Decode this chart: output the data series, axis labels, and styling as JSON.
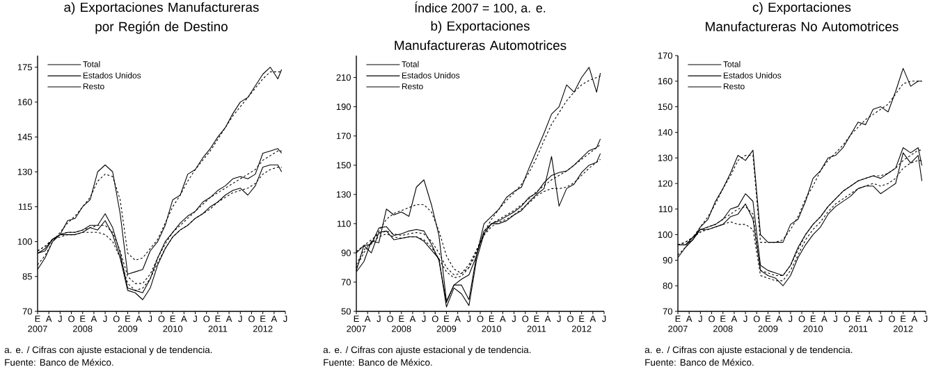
{
  "chart_data": [
    {
      "type": "line",
      "title": "a) Exportaciones Manufactureras por Región de Destino",
      "x": [
        "2007-01",
        "2007-03",
        "2007-05",
        "2007-07",
        "2007-09",
        "2007-11",
        "2008-01",
        "2008-03",
        "2008-05",
        "2008-07",
        "2008-09",
        "2008-11",
        "2009-01",
        "2009-03",
        "2009-05",
        "2009-07",
        "2009-09",
        "2009-11",
        "2010-01",
        "2010-03",
        "2010-05",
        "2010-07",
        "2010-09",
        "2010-11",
        "2011-01",
        "2011-03",
        "2011-05",
        "2011-07",
        "2011-09",
        "2011-11",
        "2012-01",
        "2012-03",
        "2012-05",
        "2012-06"
      ],
      "series": [
        {
          "name": "Total",
          "color": "#000000",
          "values": [
            95,
            96,
            101,
            103,
            104,
            104,
            105,
            107,
            107,
            112,
            106,
            95,
            80,
            79,
            78,
            84,
            93,
            100,
            104,
            108,
            111,
            113,
            117,
            119,
            122,
            124,
            127,
            128,
            127,
            129,
            138,
            139,
            140,
            138
          ]
        },
        {
          "name": "Estados Unidos",
          "color": "#000000",
          "values": [
            95,
            97,
            101,
            103,
            103,
            103,
            104,
            106,
            105,
            109,
            103,
            93,
            79,
            78,
            75,
            80,
            90,
            97,
            102,
            105,
            107,
            110,
            112,
            115,
            117,
            120,
            122,
            123,
            120,
            124,
            132,
            133,
            133,
            130
          ]
        },
        {
          "name": "Resto",
          "color": "#000000",
          "values": [
            88,
            93,
            100,
            103,
            109,
            110,
            115,
            118,
            130,
            133,
            130,
            112,
            86,
            87,
            88,
            96,
            100,
            107,
            118,
            120,
            129,
            131,
            136,
            140,
            145,
            149,
            155,
            160,
            162,
            167,
            172,
            175,
            170,
            174
          ]
        },
        {
          "color": "#000000",
          "line_style": "dashed",
          "values": [
            96,
            98,
            101,
            103,
            104,
            104,
            105,
            106,
            107,
            107,
            104,
            96,
            85,
            82,
            82,
            86,
            93,
            99,
            104,
            107,
            110,
            113,
            116,
            119,
            121,
            123,
            125,
            127,
            129,
            131,
            135,
            137,
            139,
            139
          ]
        },
        {
          "color": "#000000",
          "line_style": "dashed",
          "values": [
            96,
            98,
            101,
            102,
            103,
            103,
            104,
            104,
            104,
            103,
            100,
            93,
            82,
            79,
            80,
            84,
            91,
            97,
            102,
            105,
            107,
            110,
            112,
            114,
            117,
            119,
            121,
            122,
            123,
            125,
            129,
            131,
            132,
            132
          ]
        },
        {
          "color": "#000000",
          "line_style": "dashed",
          "values": [
            90,
            94,
            100,
            104,
            108,
            111,
            115,
            119,
            126,
            129,
            128,
            118,
            95,
            92,
            93,
            97,
            101,
            108,
            115,
            120,
            126,
            131,
            135,
            139,
            144,
            149,
            154,
            158,
            162,
            166,
            170,
            173,
            173,
            173
          ]
        }
      ],
      "xlim": [
        "2007-01",
        "2012-07"
      ],
      "xticks": [
        {
          "value": "2007",
          "label": "2007"
        },
        {
          "value": "2007-04",
          "label": null
        },
        {
          "value": "2007-07",
          "label": null
        },
        {
          "value": "2007-10",
          "label": null
        },
        {
          "value": "2008",
          "label": "2008"
        },
        {
          "value": "2008-04",
          "label": null
        },
        {
          "value": "2008-07",
          "label": null
        },
        {
          "value": "2008-10",
          "label": null
        },
        {
          "value": "2009",
          "label": "2009"
        },
        {
          "value": "2009-04",
          "label": null
        },
        {
          "value": "2009-07",
          "label": null
        },
        {
          "value": "2009-10",
          "label": null
        },
        {
          "value": "2010",
          "label": "2010"
        },
        {
          "value": "2010-04",
          "label": null
        },
        {
          "value": "2010-07",
          "label": null
        },
        {
          "value": "2010-10",
          "label": null
        },
        {
          "value": "2011",
          "label": "2011"
        },
        {
          "value": "2011-04",
          "label": null
        },
        {
          "value": "2011-07",
          "label": null
        },
        {
          "value": "2011-10",
          "label": null
        },
        {
          "value": "2012",
          "label": "2012"
        },
        {
          "value": "2012-04",
          "label": null
        },
        {
          "value": "2012-07",
          "label": null
        }
      ],
      "ylim": [
        70,
        180
      ],
      "yticks": [
        70,
        85,
        100,
        115,
        130,
        145,
        160,
        175
      ],
      "legend": "top left",
      "annotations": [
        "E",
        "A",
        "J",
        "O",
        "E",
        "A",
        "J",
        "O",
        "E",
        "A",
        "J",
        "O",
        "E",
        "A",
        "J",
        "O",
        "E",
        "A",
        "J",
        "O",
        "E",
        "A",
        "J",
        "a. e. / Cifras con ajuste estacional y de tendencia.",
        "Fuente: Banco de México."
      ]
    },
    {
      "type": "line",
      "title": "b) Exportaciones Manufactureras Automotrices",
      "subtitle": "Índice 2007 = 100, a. e.",
      "x": [
        "2007-01",
        "2007-03",
        "2007-05",
        "2007-07",
        "2007-09",
        "2007-11",
        "2008-01",
        "2008-03",
        "2008-05",
        "2008-07",
        "2008-09",
        "2008-11",
        "2009-01",
        "2009-03",
        "2009-05",
        "2009-07",
        "2009-09",
        "2009-11",
        "2010-01",
        "2010-03",
        "2010-05",
        "2010-07",
        "2010-09",
        "2010-11",
        "2011-01",
        "2011-03",
        "2011-05",
        "2011-07",
        "2011-09",
        "2011-11",
        "2012-01",
        "2012-03",
        "2012-05",
        "2012-06"
      ],
      "series": [
        {
          "name": "Total",
          "color": "#000000",
          "values": [
            90,
            95,
            96,
            107,
            108,
            102,
            103,
            105,
            106,
            105,
            96,
            85,
            56,
            68,
            72,
            75,
            88,
            105,
            110,
            112,
            115,
            118,
            122,
            128,
            131,
            138,
            143,
            145,
            146,
            150,
            155,
            160,
            162,
            168
          ]
        },
        {
          "name": "Estados Unidos",
          "color": "#000000",
          "values": [
            78,
            95,
            90,
            104,
            105,
            99,
            100,
            101,
            101,
            98,
            92,
            86,
            53,
            66,
            62,
            54,
            85,
            103,
            110,
            110,
            112,
            116,
            119,
            125,
            130,
            134,
            156,
            122,
            134,
            137,
            145,
            150,
            152,
            158
          ]
        },
        {
          "name": "Resto",
          "color": "#000000",
          "values": [
            77,
            84,
            98,
            97,
            120,
            116,
            118,
            115,
            135,
            140,
            123,
            102,
            57,
            68,
            68,
            58,
            88,
            110,
            115,
            120,
            128,
            132,
            135,
            148,
            160,
            172,
            185,
            190,
            205,
            200,
            210,
            217,
            200,
            213
          ]
        },
        {
          "color": "#000000",
          "line_style": "dashed",
          "values": [
            91,
            95,
            99,
            103,
            105,
            103,
            102,
            103,
            104,
            103,
            98,
            90,
            80,
            75,
            76,
            82,
            92,
            103,
            110,
            113,
            116,
            119,
            123,
            127,
            132,
            136,
            140,
            143,
            146,
            150,
            154,
            158,
            162,
            164
          ]
        },
        {
          "color": "#000000",
          "line_style": "dashed",
          "values": [
            82,
            92,
            97,
            101,
            103,
            101,
            100,
            101,
            101,
            99,
            94,
            86,
            77,
            73,
            74,
            80,
            91,
            102,
            108,
            111,
            113,
            116,
            120,
            124,
            129,
            132,
            134,
            134,
            135,
            138,
            143,
            148,
            152,
            154
          ]
        },
        {
          "color": "#000000",
          "line_style": "dashed",
          "values": [
            80,
            90,
            97,
            105,
            113,
            117,
            119,
            121,
            123,
            123,
            118,
            105,
            88,
            79,
            76,
            80,
            90,
            104,
            113,
            120,
            126,
            131,
            137,
            145,
            155,
            167,
            178,
            186,
            194,
            200,
            205,
            208,
            210,
            211
          ]
        }
      ],
      "xlim": [
        "2007-01",
        "2012-07"
      ],
      "xticks": [
        {
          "value": "2007",
          "label": "2007"
        },
        {
          "value": "2007-04",
          "label": null
        },
        {
          "value": "2007-07",
          "label": null
        },
        {
          "value": "2007-10",
          "label": null
        },
        {
          "value": "2008",
          "label": "2008"
        },
        {
          "value": "2008-04",
          "label": null
        },
        {
          "value": "2008-07",
          "label": null
        },
        {
          "value": "2008-10",
          "label": null
        },
        {
          "value": "2009",
          "label": "2009"
        },
        {
          "value": "2009-04",
          "label": null
        },
        {
          "value": "2009-07",
          "label": null
        },
        {
          "value": "2009-10",
          "label": null
        },
        {
          "value": "2010",
          "label": "2010"
        },
        {
          "value": "2010-04",
          "label": null
        },
        {
          "value": "2010-07",
          "label": null
        },
        {
          "value": "2010-10",
          "label": null
        },
        {
          "value": "2011",
          "label": "2011"
        },
        {
          "value": "2011-04",
          "label": null
        },
        {
          "value": "2011-07",
          "label": null
        },
        {
          "value": "2011-10",
          "label": null
        },
        {
          "value": "2012",
          "label": "2012"
        },
        {
          "value": "2012-04",
          "label": null
        },
        {
          "value": "2012-07",
          "label": null
        }
      ],
      "ylim": [
        50,
        225
      ],
      "yticks": [
        50,
        70,
        90,
        110,
        130,
        150,
        170,
        190,
        210
      ],
      "legend": "top left",
      "annotations": [
        "E",
        "A",
        "J",
        "O",
        "E",
        "A",
        "J",
        "O",
        "E",
        "A",
        "J",
        "O",
        "E",
        "A",
        "J",
        "O",
        "E",
        "A",
        "J",
        "O",
        "E",
        "A",
        "J",
        "a. e. / Cifras con ajuste estacional y de tendencia.",
        "Fuente: Banco de México."
      ]
    },
    {
      "type": "line",
      "title": "c) Exportaciones Manufactureras No Automotrices",
      "x": [
        "2007-01",
        "2007-03",
        "2007-05",
        "2007-07",
        "2007-09",
        "2007-11",
        "2008-01",
        "2008-03",
        "2008-05",
        "2008-07",
        "2008-09",
        "2008-11",
        "2009-01",
        "2009-03",
        "2009-05",
        "2009-07",
        "2009-09",
        "2009-11",
        "2010-01",
        "2010-03",
        "2010-05",
        "2010-07",
        "2010-09",
        "2010-11",
        "2011-01",
        "2011-03",
        "2011-05",
        "2011-07",
        "2011-09",
        "2011-11",
        "2012-01",
        "2012-03",
        "2012-05",
        "2012-06"
      ],
      "series": [
        {
          "name": "Total",
          "color": "#000000",
          "values": [
            96,
            96,
            99,
            102,
            103,
            104,
            106,
            110,
            111,
            116,
            113,
            88,
            86,
            85,
            84,
            88,
            95,
            100,
            104,
            107,
            111,
            114,
            117,
            119,
            121,
            122,
            123,
            122,
            124,
            126,
            134,
            132,
            134,
            127
          ]
        },
        {
          "name": "Estados Unidos",
          "color": "#000000",
          "values": [
            96,
            96,
            98,
            102,
            102,
            103,
            104,
            107,
            108,
            112,
            106,
            86,
            84,
            83,
            80,
            84,
            91,
            96,
            100,
            103,
            108,
            111,
            113,
            115,
            118,
            119,
            119,
            116,
            118,
            120,
            132,
            128,
            131,
            121
          ]
        },
        {
          "name": "Resto",
          "color": "#000000",
          "values": [
            91,
            95,
            98,
            103,
            106,
            113,
            118,
            124,
            131,
            129,
            133,
            100,
            97,
            97,
            97,
            104,
            106,
            113,
            122,
            125,
            130,
            131,
            134,
            139,
            144,
            143,
            149,
            150,
            148,
            156,
            165,
            158,
            160,
            160
          ]
        },
        {
          "color": "#000000",
          "line_style": "dashed",
          "values": [
            96,
            97,
            99,
            101,
            103,
            104,
            106,
            108,
            110,
            111,
            108,
            86,
            85,
            84,
            84,
            88,
            94,
            100,
            104,
            107,
            111,
            114,
            117,
            119,
            121,
            122,
            123,
            123,
            124,
            126,
            129,
            131,
            133,
            133
          ]
        },
        {
          "color": "#000000",
          "line_style": "dashed",
          "values": [
            96,
            97,
            99,
            101,
            102,
            103,
            104,
            105,
            104,
            104,
            102,
            84,
            83,
            82,
            82,
            86,
            92,
            98,
            102,
            105,
            109,
            112,
            114,
            116,
            118,
            119,
            120,
            119,
            120,
            122,
            126,
            128,
            129,
            129
          ]
        },
        {
          "color": "#000000",
          "line_style": "dashed",
          "values": [
            92,
            95,
            99,
            103,
            107,
            112,
            118,
            123,
            129,
            131,
            131,
            97,
            97,
            97,
            98,
            102,
            107,
            114,
            119,
            125,
            129,
            132,
            135,
            139,
            142,
            145,
            147,
            149,
            151,
            155,
            159,
            160,
            160,
            160
          ]
        }
      ],
      "xlim": [
        "2007-01",
        "2012-07"
      ],
      "xticks": [
        {
          "value": "2007",
          "label": "2007"
        },
        {
          "value": "2007-04",
          "label": null
        },
        {
          "value": "2007-07",
          "label": null
        },
        {
          "value": "2007-10",
          "label": null
        },
        {
          "value": "2008",
          "label": "2008"
        },
        {
          "value": "2008-04",
          "label": null
        },
        {
          "value": "2008-07",
          "label": null
        },
        {
          "value": "2008-10",
          "label": null
        },
        {
          "value": "2009",
          "label": "2009"
        },
        {
          "value": "2009-04",
          "label": null
        },
        {
          "value": "2009-07",
          "label": null
        },
        {
          "value": "2009-10",
          "label": null
        },
        {
          "value": "2010",
          "label": "2010"
        },
        {
          "value": "2010-04",
          "label": null
        },
        {
          "value": "2010-07",
          "label": null
        },
        {
          "value": "2010-10",
          "label": null
        },
        {
          "value": "2011",
          "label": "2011"
        },
        {
          "value": "2011-04",
          "label": null
        },
        {
          "value": "2011-07",
          "label": null
        },
        {
          "value": "2011-10",
          "label": null
        },
        {
          "value": "2012",
          "label": "2012"
        },
        {
          "value": "2012-04",
          "label": null
        },
        {
          "value": "2012-07",
          "label": null
        }
      ],
      "ylim": [
        70,
        170
      ],
      "yticks": [
        70,
        80,
        90,
        100,
        110,
        120,
        130,
        140,
        150,
        160,
        170
      ],
      "legend": "top left",
      "annotations": [
        "E",
        "A",
        "J",
        "O",
        "E",
        "A",
        "J",
        "O",
        "E",
        "A",
        "J",
        "O",
        "E",
        "A",
        "J",
        "O",
        "E",
        "A",
        "J",
        "O",
        "E",
        "A",
        "J",
        "a. e. / Cifras con ajuste estacional y de tendencia.",
        "Fuente: Banco de México."
      ]
    }
  ]
}
